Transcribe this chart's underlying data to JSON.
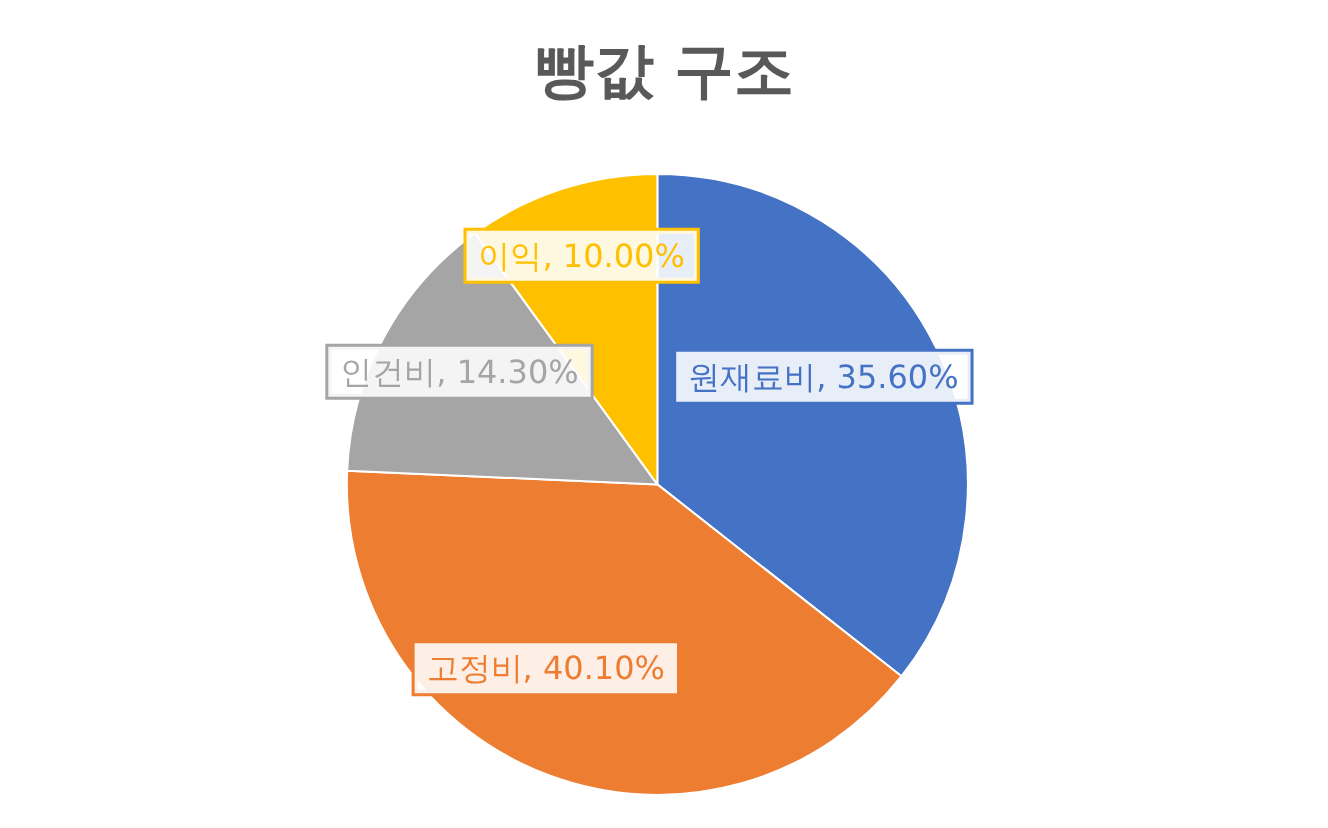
{
  "chart_data": {
    "type": "pie",
    "title": "빵값 구조",
    "categories": [
      "원재료비",
      "고정비",
      "인건비",
      "이익"
    ],
    "values": [
      35.6,
      40.1,
      14.3,
      10.0
    ],
    "value_labels": [
      "35.60%",
      "40.10%",
      "14.30%",
      "10.00%"
    ],
    "colors": [
      "#4472c4",
      "#ed7d31",
      "#a5a5a5",
      "#ffc000"
    ],
    "legend": false
  }
}
